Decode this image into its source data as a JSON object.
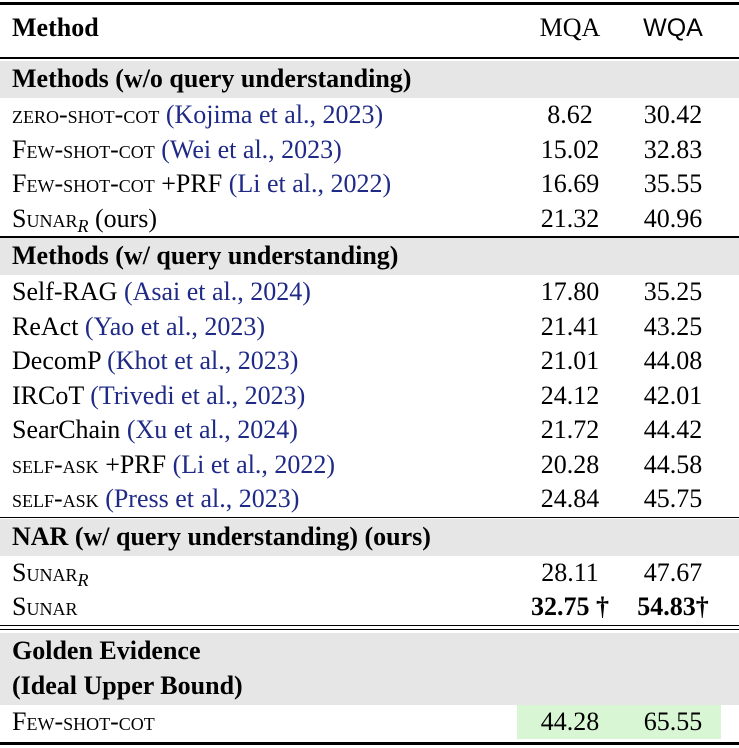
{
  "header": {
    "method": "Method",
    "mqa": "MQA",
    "wqa": "WQA"
  },
  "sections": [
    {
      "title": [
        "Methods (w/o query understanding)"
      ],
      "rows": [
        {
          "name": "zero-shot-cot",
          "smallcaps": true,
          "citation": "(Kojima et al., 2023)",
          "mqa": "8.62",
          "wqa": "30.42"
        },
        {
          "name": "Few-shot-cot",
          "smallcaps": true,
          "citation": "(Wei et al., 2023)",
          "mqa": "15.02",
          "wqa": "32.83"
        },
        {
          "name": "Few-shot-cot",
          "smallcaps": true,
          "suffix": "+PRF",
          "citation": "(Li et al., 2022)",
          "mqa": "16.69",
          "wqa": "35.55"
        },
        {
          "name": "Sunar",
          "smallcaps": true,
          "sub": "R",
          "suffix": "(ours)",
          "mqa": "21.32",
          "wqa": "40.96"
        }
      ]
    },
    {
      "title": [
        "Methods (w/ query understanding)"
      ],
      "rows": [
        {
          "name": "Self-RAG",
          "citation": "(Asai et al., 2024)",
          "mqa": "17.80",
          "wqa": "35.25"
        },
        {
          "name": "ReAct",
          "citation": "(Yao et al., 2023)",
          "mqa": "21.41",
          "wqa": "43.25"
        },
        {
          "name": "DecomP",
          "citation": "(Khot et al., 2023)",
          "mqa": "21.01",
          "wqa": "44.08"
        },
        {
          "name": "IRCoT",
          "citation": "(Trivedi et al., 2023)",
          "mqa": "24.12",
          "wqa": "42.01"
        },
        {
          "name": "SearChain",
          "citation": "(Xu et al., 2024)",
          "mqa": "21.72",
          "wqa": "44.42"
        },
        {
          "name": "self-ask",
          "smallcaps": true,
          "suffix": "+PRF",
          "citation": "(Li et al., 2022)",
          "mqa": "20.28",
          "wqa": "44.58"
        },
        {
          "name": "self-ask",
          "smallcaps": true,
          "citation": "(Press et al., 2023)",
          "mqa": "24.84",
          "wqa": "45.75"
        }
      ]
    },
    {
      "title": [
        "NAR (w/ query understanding) (ours)"
      ],
      "rows": [
        {
          "name": "Sunar",
          "smallcaps": true,
          "sub": "R",
          "mqa": "28.11",
          "wqa": "47.67"
        },
        {
          "name": "Sunar",
          "smallcaps": true,
          "mqa": "32.75 †",
          "wqa": "54.83†",
          "bold": true
        }
      ]
    },
    {
      "title": [
        "Golden Evidence",
        "(Ideal Upper Bound)"
      ],
      "rows": [
        {
          "name": "Few-shot-cot",
          "smallcaps": true,
          "mqa": "44.28",
          "wqa": "65.55",
          "highlight": "#d8f6d3"
        }
      ]
    }
  ]
}
